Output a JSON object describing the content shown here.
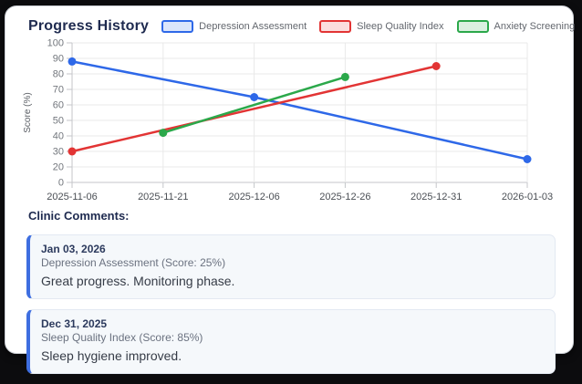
{
  "header": {
    "title": "Progress History"
  },
  "legend": [
    {
      "label": "Depression Assessment",
      "color": "#2e68e8",
      "fill": "#dbe5fb"
    },
    {
      "label": "Sleep Quality Index",
      "color": "#e23434",
      "fill": "#fbdede"
    },
    {
      "label": "Anxiety Screening",
      "color": "#2ba84a",
      "fill": "#daf0e0"
    }
  ],
  "chart_data": {
    "type": "line",
    "title": "Progress History",
    "xlabel": "",
    "ylabel": "Score (%)",
    "x_categories": [
      "2025-11-06",
      "2025-11-21",
      "2025-12-06",
      "2025-12-26",
      "2025-12-31",
      "2026-01-03"
    ],
    "y_tick_labels": [
      "100",
      "90",
      "80",
      "70",
      "60",
      "50",
      "40",
      "30",
      "20",
      "0"
    ],
    "ylim": [
      0,
      100
    ],
    "grid": true,
    "legend_position": "top",
    "series": [
      {
        "name": "Depression Assessment",
        "color": "#2e68e8",
        "points": [
          {
            "x": "2025-11-06",
            "y": 88
          },
          {
            "x": "2025-12-06",
            "y": 65
          },
          {
            "x": "2026-01-03",
            "y": 25
          }
        ]
      },
      {
        "name": "Sleep Quality Index",
        "color": "#e23434",
        "points": [
          {
            "x": "2025-11-06",
            "y": 30
          },
          {
            "x": "2025-12-31",
            "y": 85
          }
        ]
      },
      {
        "name": "Anxiety Screening",
        "color": "#2ba84a",
        "points": [
          {
            "x": "2025-11-21",
            "y": 42
          },
          {
            "x": "2025-12-26",
            "y": 78
          }
        ]
      }
    ]
  },
  "comments": {
    "heading": "Clinic Comments:",
    "items": [
      {
        "date": "Jan 03, 2026",
        "meta": "Depression Assessment (Score: 25%)",
        "text": "Great progress. Monitoring phase."
      },
      {
        "date": "Dec 31, 2025",
        "meta": "Sleep Quality Index (Score: 85%)",
        "text": "Sleep hygiene improved."
      }
    ]
  },
  "colors": {
    "title_navy": "#1e2a4f",
    "axis_label_gray": "#73777d",
    "x_label_gray": "#4b4f55",
    "gridline": "#e9e9e9",
    "axis_border": "#c4c6ca",
    "comment_accent_blue": "#3e6ee0",
    "comment_card_bg": "#f5f8fb"
  }
}
